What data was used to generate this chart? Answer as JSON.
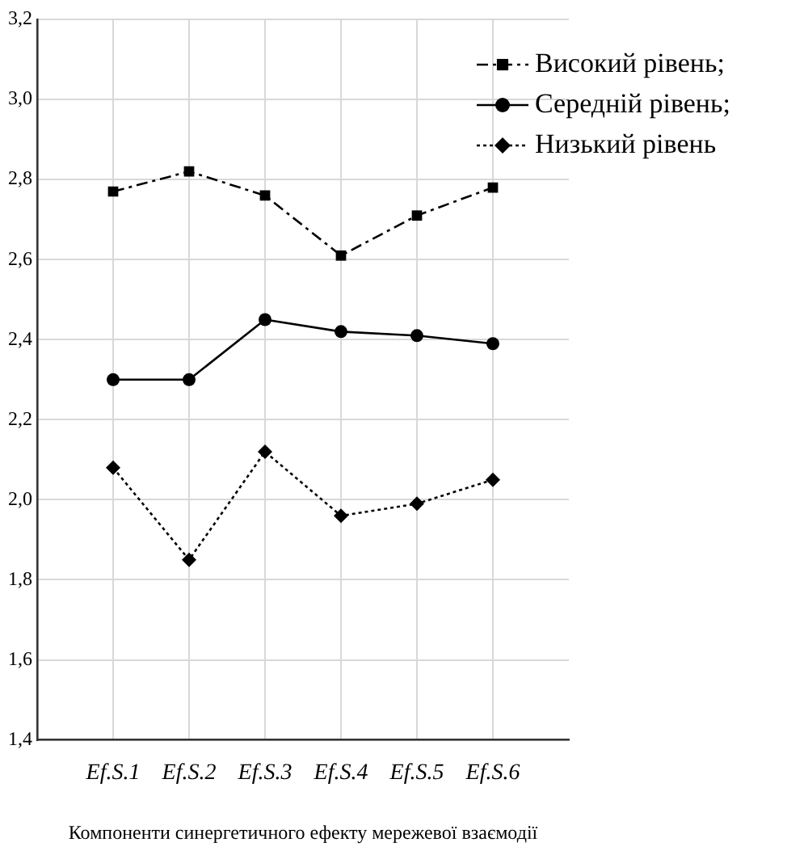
{
  "chart_data": {
    "type": "line",
    "xlabel": "Компоненти синергетичного ефекту мережевої взаємодії",
    "categories": [
      "Ef.S.1",
      "Ef.S.2",
      "Ef.S.3",
      "Ef.S.4",
      "Ef.S.5",
      "Ef.S.6"
    ],
    "series": [
      {
        "name": "Високий рівень;",
        "color": "#000000",
        "marker": "square",
        "line_style": "dashed",
        "values": [
          2.77,
          2.82,
          2.76,
          2.61,
          2.71,
          2.78
        ]
      },
      {
        "name": "Середній рівень;",
        "color": "#000000",
        "marker": "circle",
        "line_style": "solid",
        "values": [
          2.3,
          2.3,
          2.45,
          2.42,
          2.41,
          2.39
        ]
      },
      {
        "name": "Низький рівень",
        "color": "#000000",
        "marker": "diamond",
        "line_style": "dotted",
        "values": [
          2.08,
          1.85,
          2.12,
          1.96,
          1.99,
          2.05
        ]
      }
    ],
    "ylim": [
      1.4,
      3.2
    ],
    "yticks": [
      {
        "value": 1.4,
        "label": "1,4"
      },
      {
        "value": 1.6,
        "label": "1,6"
      },
      {
        "value": 1.8,
        "label": "1,8"
      },
      {
        "value": 2.0,
        "label": "2,0"
      },
      {
        "value": 2.2,
        "label": "2,2"
      },
      {
        "value": 2.4,
        "label": "2,4"
      },
      {
        "value": 2.6,
        "label": "2,6"
      },
      {
        "value": 2.8,
        "label": "2,8"
      },
      {
        "value": 3.0,
        "label": "3,0"
      },
      {
        "value": 3.2,
        "label": "3,2"
      }
    ],
    "grid": true,
    "legend": "top right"
  }
}
